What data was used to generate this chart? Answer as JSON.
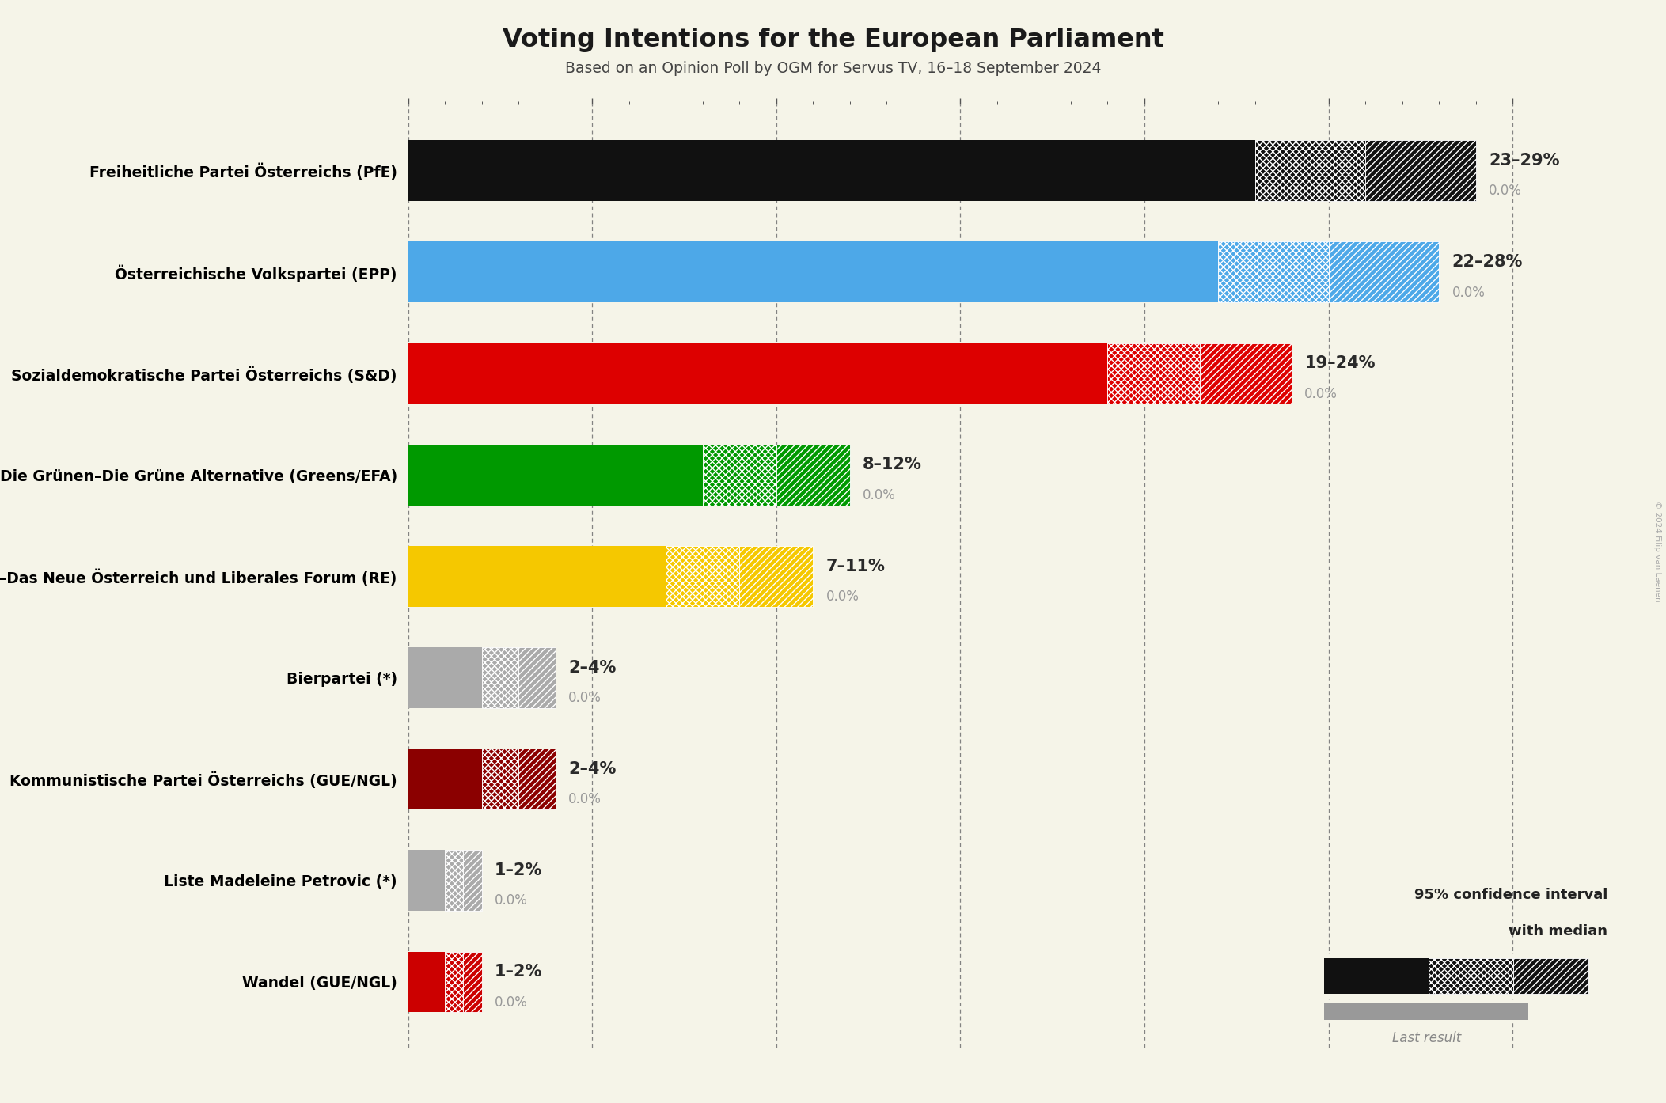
{
  "title": "Voting Intentions for the European Parliament",
  "subtitle": "Based on an Opinion Poll by OGM for Servus TV, 16–18 September 2024",
  "background_color": "#f5f4e8",
  "parties": [
    {
      "name": "Freiheitliche Partei Österreichs (PfE)",
      "color": "#111111",
      "median": 26,
      "low": 23,
      "high": 29,
      "label": "23–29%",
      "sub_label": "0.0%"
    },
    {
      "name": "Österreichische Volkspartei (EPP)",
      "color": "#4da8e8",
      "median": 25,
      "low": 22,
      "high": 28,
      "label": "22–28%",
      "sub_label": "0.0%"
    },
    {
      "name": "Sozialdemokratische Partei Österreichs (S&D)",
      "color": "#dd0000",
      "median": 21.5,
      "low": 19,
      "high": 24,
      "label": "19–24%",
      "sub_label": "0.0%"
    },
    {
      "name": "Die Grünen–Die Grüne Alternative (Greens/EFA)",
      "color": "#009900",
      "median": 10,
      "low": 8,
      "high": 12,
      "label": "8–12%",
      "sub_label": "0.0%"
    },
    {
      "name": "NEOS–Das Neue Österreich und Liberales Forum (RE)",
      "color": "#f5c800",
      "median": 9,
      "low": 7,
      "high": 11,
      "label": "7–11%",
      "sub_label": "0.0%"
    },
    {
      "name": "Bierpartei (*)",
      "color": "#aaaaaa",
      "median": 3,
      "low": 2,
      "high": 4,
      "label": "2–4%",
      "sub_label": "0.0%"
    },
    {
      "name": "Kommunistische Partei Österreichs (GUE/NGL)",
      "color": "#8b0000",
      "median": 3,
      "low": 2,
      "high": 4,
      "label": "2–4%",
      "sub_label": "0.0%"
    },
    {
      "name": "Liste Madeleine Petrovic (*)",
      "color": "#aaaaaa",
      "median": 1.5,
      "low": 1,
      "high": 2,
      "label": "1–2%",
      "sub_label": "0.0%"
    },
    {
      "name": "Wandel (GUE/NGL)",
      "color": "#cc0000",
      "median": 1.5,
      "low": 1,
      "high": 2,
      "label": "1–2%",
      "sub_label": "0.0%"
    }
  ],
  "xlim_max": 31,
  "grid_ticks": [
    0,
    5,
    10,
    15,
    20,
    25,
    30
  ],
  "copyright": "© 2024 Filip van Laenen",
  "legend_ci_line1": "95% confidence interval",
  "legend_ci_line2": "with median",
  "legend_last": "Last result"
}
